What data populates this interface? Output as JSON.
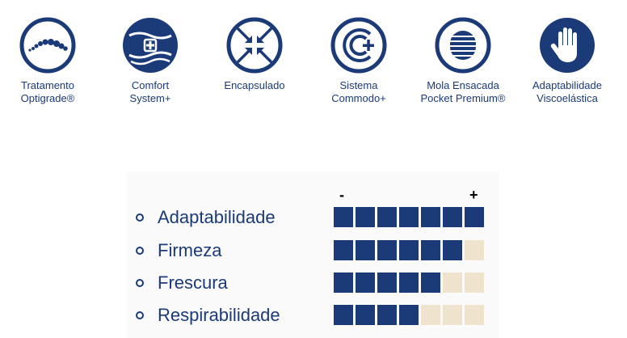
{
  "features": [
    {
      "name": "Tratamento\nOptigrade®",
      "icon": "spine-dots-icon"
    },
    {
      "name": "Comfort\nSystem+",
      "icon": "comfort-plus-icon"
    },
    {
      "name": "Encapsulado",
      "icon": "encapsulated-arrows-icon"
    },
    {
      "name": "Sistema\nCommodo+",
      "icon": "commodo-c-plus-icon"
    },
    {
      "name": "Mola Ensacada\nPocket Premium®",
      "icon": "pocket-spring-icon"
    },
    {
      "name": "Adaptabilidade\nViscoelástica",
      "icon": "hand-icon"
    }
  ],
  "scale": {
    "min_label": "-",
    "max_label": "+",
    "max": 7
  },
  "ratings": [
    {
      "label": "Adaptabilidade",
      "value": 7
    },
    {
      "label": "Firmeza",
      "value": 6
    },
    {
      "label": "Frescura",
      "value": 5
    },
    {
      "label": "Respirabilidade",
      "value": 4
    }
  ],
  "colors": {
    "primary": "#1b3a78",
    "filled": "#1b3a78",
    "empty": "#efe3cd",
    "marker": "#000000"
  }
}
